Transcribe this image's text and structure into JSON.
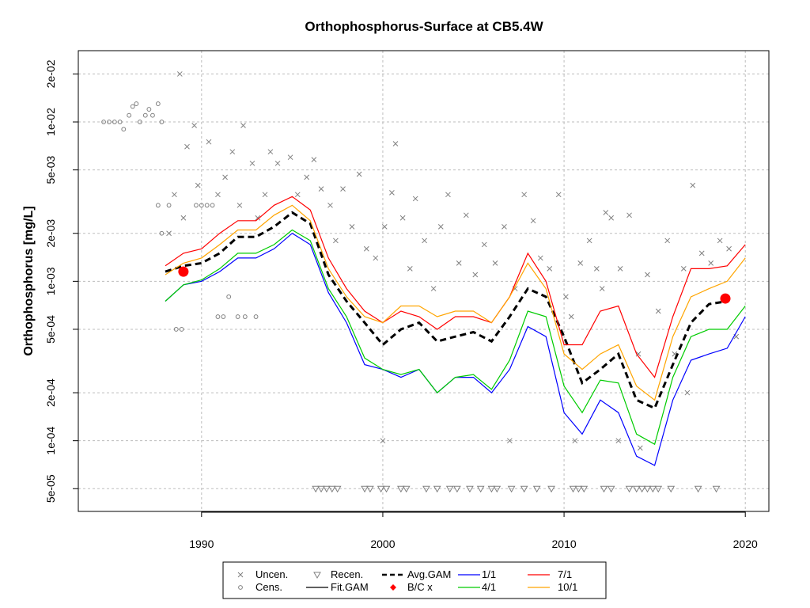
{
  "chart_data": {
    "type": "line",
    "title": "Orthophosphorus-Surface at CB5.4W",
    "ylabel": "Orthophosphorus [mg/L]",
    "xlabel": "",
    "xlim": [
      1983.2,
      2021.3
    ],
    "ylim": [
      3.6e-05,
      0.028
    ],
    "y_scale": "log",
    "grid": true,
    "legend_position": "bottom",
    "x_ticks": [
      1990,
      2000,
      2010,
      2020
    ],
    "x_tick_labels": [
      "1990",
      "2000",
      "2010",
      "2020"
    ],
    "y_ticks": [
      5e-05,
      0.0001,
      0.0002,
      0.0005,
      0.001,
      0.002,
      0.005,
      0.01,
      0.02
    ],
    "y_tick_labels": [
      "5e-05",
      "1e-04",
      "2e-04",
      "5e-04",
      "1e-03",
      "2e-03",
      "5e-03",
      "1e-02",
      "2e-02"
    ],
    "legend": [
      {
        "label": "Uncen.",
        "kind": "x-marker",
        "color": "#808080"
      },
      {
        "label": "Cens.",
        "kind": "circle-marker",
        "color": "#808080"
      },
      {
        "label": "Recen.",
        "kind": "triangle-marker",
        "color": "#808080"
      },
      {
        "label": "Fit.GAM",
        "kind": "line",
        "color": "#000000"
      },
      {
        "label": "Avg.GAM",
        "kind": "dashed-line",
        "color": "#000000"
      },
      {
        "label": "B/C x",
        "kind": "diamond-marker",
        "color": "#ff0000"
      },
      {
        "label": "1/1",
        "kind": "line",
        "color": "#0000ff"
      },
      {
        "label": "4/1",
        "kind": "line",
        "color": "#00cc00"
      },
      {
        "label": "7/1",
        "kind": "line",
        "color": "#ff0000"
      },
      {
        "label": "10/1",
        "kind": "line",
        "color": "#ffa500"
      }
    ],
    "series": [
      {
        "name": "Avg.GAM",
        "color": "#000000",
        "style": "dashed",
        "x": [
          1988,
          1989,
          1990,
          1991,
          1992,
          1993,
          1994,
          1995,
          1996,
          1997,
          1998,
          1999,
          2000,
          2001,
          2002,
          2003,
          2004,
          2005,
          2006,
          2007,
          2008,
          2009,
          2010,
          2011,
          2012,
          2013,
          2014,
          2015,
          2016,
          2017,
          2018,
          2019
        ],
        "y": [
          0.00115,
          0.00125,
          0.0013,
          0.0015,
          0.0019,
          0.0019,
          0.0022,
          0.0027,
          0.0023,
          0.0011,
          0.00075,
          0.00055,
          0.0004,
          0.0005,
          0.00055,
          0.00042,
          0.00045,
          0.00048,
          0.00042,
          0.0006,
          0.0009,
          0.0008,
          0.00045,
          0.00023,
          0.00028,
          0.00035,
          0.00018,
          0.00016,
          0.0003,
          0.00055,
          0.00072,
          0.00075
        ]
      },
      {
        "name": "1/1",
        "color": "#0000ff",
        "style": "solid",
        "x": [
          1988,
          1989,
          1990,
          1991,
          1992,
          1993,
          1994,
          1995,
          1996,
          1997,
          1998,
          1999,
          2000,
          2001,
          2002,
          2003,
          2004,
          2005,
          2006,
          2007,
          2008,
          2009,
          2010,
          2011,
          2012,
          2013,
          2014,
          2015,
          2016,
          2017,
          2018,
          2019,
          2020
        ],
        "y": [
          0.00075,
          0.00095,
          0.001,
          0.00115,
          0.0014,
          0.0014,
          0.0016,
          0.002,
          0.0017,
          0.00085,
          0.00055,
          0.0003,
          0.00028,
          0.00025,
          0.00028,
          0.0002,
          0.00025,
          0.00025,
          0.0002,
          0.00028,
          0.00052,
          0.00045,
          0.00015,
          0.00011,
          0.00018,
          0.00015,
          8e-05,
          7e-05,
          0.00018,
          0.00032,
          0.00035,
          0.00038,
          0.0006
        ]
      },
      {
        "name": "4/1",
        "color": "#00cc00",
        "style": "solid",
        "x": [
          1988,
          1989,
          1990,
          1991,
          1992,
          1993,
          1994,
          1995,
          1996,
          1997,
          1998,
          1999,
          2000,
          2001,
          2002,
          2003,
          2004,
          2005,
          2006,
          2007,
          2008,
          2009,
          2010,
          2011,
          2012,
          2013,
          2014,
          2015,
          2016,
          2017,
          2018,
          2019,
          2020
        ],
        "y": [
          0.00075,
          0.00095,
          0.00102,
          0.0012,
          0.0015,
          0.0015,
          0.0017,
          0.0021,
          0.0018,
          0.0009,
          0.0006,
          0.00033,
          0.00028,
          0.00026,
          0.00028,
          0.0002,
          0.00025,
          0.00026,
          0.00021,
          0.00032,
          0.00065,
          0.0006,
          0.00022,
          0.00015,
          0.00024,
          0.00023,
          0.00011,
          9.5e-05,
          0.00025,
          0.00045,
          0.0005,
          0.0005,
          0.0007
        ]
      },
      {
        "name": "7/1",
        "color": "#ff0000",
        "style": "solid",
        "x": [
          1988,
          1989,
          1990,
          1991,
          1992,
          1993,
          1994,
          1995,
          1996,
          1997,
          1998,
          1999,
          2000,
          2001,
          2002,
          2003,
          2004,
          2005,
          2006,
          2007,
          2008,
          2009,
          2010,
          2011,
          2012,
          2013,
          2014,
          2015,
          2016,
          2017,
          2018,
          2019,
          2020
        ],
        "y": [
          0.00125,
          0.0015,
          0.0016,
          0.002,
          0.0024,
          0.0024,
          0.003,
          0.0034,
          0.0028,
          0.0014,
          0.0009,
          0.00065,
          0.00055,
          0.00065,
          0.0006,
          0.0005,
          0.0006,
          0.0006,
          0.00055,
          0.0008,
          0.0015,
          0.001,
          0.0004,
          0.0004,
          0.00065,
          0.0007,
          0.00035,
          0.00025,
          0.0006,
          0.0012,
          0.0012,
          0.00125,
          0.0017
        ]
      },
      {
        "name": "10/1",
        "color": "#ffa500",
        "style": "solid",
        "x": [
          1988,
          1989,
          1990,
          1991,
          1992,
          1993,
          1994,
          1995,
          1996,
          1997,
          1998,
          1999,
          2000,
          2001,
          2002,
          2003,
          2004,
          2005,
          2006,
          2007,
          2008,
          2009,
          2010,
          2011,
          2012,
          2013,
          2014,
          2015,
          2016,
          2017,
          2018,
          2019,
          2020
        ],
        "y": [
          0.0011,
          0.0013,
          0.0014,
          0.0017,
          0.0021,
          0.0021,
          0.0026,
          0.003,
          0.0024,
          0.0012,
          0.0008,
          0.0006,
          0.00055,
          0.0007,
          0.0007,
          0.0006,
          0.00065,
          0.00065,
          0.00055,
          0.0008,
          0.0013,
          0.0009,
          0.00035,
          0.00028,
          0.00035,
          0.0004,
          0.00022,
          0.00018,
          0.00045,
          0.0008,
          0.0009,
          0.001,
          0.0014
        ]
      }
    ],
    "bc_points": [
      {
        "x": 1989.0,
        "y": 0.00115
      },
      {
        "x": 2018.9,
        "y": 0.00078
      }
    ],
    "uncensored_points": [
      [
        1988.2,
        0.002
      ],
      [
        1988.5,
        0.0035
      ],
      [
        1988.8,
        0.02
      ],
      [
        1989.0,
        0.0025
      ],
      [
        1989.2,
        0.007
      ],
      [
        1989.6,
        0.0095
      ],
      [
        1989.8,
        0.004
      ],
      [
        1990.4,
        0.0075
      ],
      [
        1990.9,
        0.0035
      ],
      [
        1991.3,
        0.0045
      ],
      [
        1991.7,
        0.0065
      ],
      [
        1992.1,
        0.003
      ],
      [
        1992.3,
        0.0095
      ],
      [
        1992.8,
        0.0055
      ],
      [
        1993.1,
        0.0025
      ],
      [
        1993.5,
        0.0035
      ],
      [
        1993.8,
        0.0065
      ],
      [
        1994.2,
        0.0055
      ],
      [
        1994.9,
        0.006
      ],
      [
        1995.3,
        0.0035
      ],
      [
        1995.8,
        0.0045
      ],
      [
        1996.2,
        0.0058
      ],
      [
        1996.6,
        0.0038
      ],
      [
        1997.1,
        0.003
      ],
      [
        1997.4,
        0.0018
      ],
      [
        1997.8,
        0.0038
      ],
      [
        1998.3,
        0.0022
      ],
      [
        1998.7,
        0.0047
      ],
      [
        1999.1,
        0.0016
      ],
      [
        1999.6,
        0.0014
      ],
      [
        2000.1,
        0.0022
      ],
      [
        2000.5,
        0.0036
      ],
      [
        2000.7,
        0.0073
      ],
      [
        2001.1,
        0.0025
      ],
      [
        2001.5,
        0.0012
      ],
      [
        2001.8,
        0.0033
      ],
      [
        2002.3,
        0.0018
      ],
      [
        2002.8,
        0.0009
      ],
      [
        2003.2,
        0.0022
      ],
      [
        2003.6,
        0.0035
      ],
      [
        2004.2,
        0.0013
      ],
      [
        2004.6,
        0.0026
      ],
      [
        2005.1,
        0.0011
      ],
      [
        2005.6,
        0.0017
      ],
      [
        2006.2,
        0.0013
      ],
      [
        2006.7,
        0.0022
      ],
      [
        2007.3,
        0.0009
      ],
      [
        2007.8,
        0.0035
      ],
      [
        2008.3,
        0.0024
      ],
      [
        2008.7,
        0.0014
      ],
      [
        2009.2,
        0.0012
      ],
      [
        2009.7,
        0.0035
      ],
      [
        2010.1,
        0.0008
      ],
      [
        2010.4,
        0.0006
      ],
      [
        2010.9,
        0.0013
      ],
      [
        2011.4,
        0.0018
      ],
      [
        2011.8,
        0.0012
      ],
      [
        2012.1,
        0.0009
      ],
      [
        2012.6,
        0.0025
      ],
      [
        2013.1,
        0.0012
      ],
      [
        2013.6,
        0.0026
      ],
      [
        2014.1,
        0.00035
      ],
      [
        2014.6,
        0.0011
      ],
      [
        2015.2,
        0.00065
      ],
      [
        2015.7,
        0.0018
      ],
      [
        2016.1,
        0.00035
      ],
      [
        2016.6,
        0.0012
      ],
      [
        2017.1,
        0.004
      ],
      [
        2017.6,
        0.0015
      ],
      [
        2018.1,
        0.0013
      ],
      [
        2018.6,
        0.0018
      ],
      [
        2019.1,
        0.0016
      ],
      [
        2019.5,
        0.00045
      ],
      [
        2000.0,
        0.0001
      ],
      [
        2007.0,
        0.0001
      ],
      [
        2010.6,
        0.0001
      ],
      [
        2013.0,
        0.0001
      ],
      [
        2014.2,
        9e-05
      ],
      [
        2016.8,
        0.0002
      ],
      [
        2012.3,
        0.0027
      ]
    ],
    "censored_points": [
      [
        1984.6,
        0.01
      ],
      [
        1984.9,
        0.01
      ],
      [
        1985.2,
        0.01
      ],
      [
        1985.5,
        0.01
      ],
      [
        1985.7,
        0.009
      ],
      [
        1986.0,
        0.011
      ],
      [
        1986.2,
        0.0125
      ],
      [
        1986.4,
        0.013
      ],
      [
        1986.6,
        0.01
      ],
      [
        1986.9,
        0.011
      ],
      [
        1987.1,
        0.012
      ],
      [
        1987.3,
        0.011
      ],
      [
        1987.6,
        0.013
      ],
      [
        1987.8,
        0.01
      ],
      [
        1987.6,
        0.003
      ],
      [
        1987.8,
        0.002
      ],
      [
        1988.2,
        0.003
      ],
      [
        1988.6,
        0.0005
      ],
      [
        1988.9,
        0.0005
      ],
      [
        1989.7,
        0.003
      ],
      [
        1990.0,
        0.003
      ],
      [
        1990.3,
        0.003
      ],
      [
        1990.6,
        0.003
      ],
      [
        1990.9,
        0.0006
      ],
      [
        1991.2,
        0.0006
      ],
      [
        1991.5,
        0.0008
      ],
      [
        1992.0,
        0.0006
      ],
      [
        1992.4,
        0.0006
      ],
      [
        1993.0,
        0.0006
      ]
    ],
    "recensored_points": [
      [
        1996.3,
        5e-05
      ],
      [
        1996.6,
        5e-05
      ],
      [
        1996.9,
        5e-05
      ],
      [
        1997.2,
        5e-05
      ],
      [
        1997.5,
        5e-05
      ],
      [
        1999.0,
        5e-05
      ],
      [
        1999.3,
        5e-05
      ],
      [
        1999.9,
        5e-05
      ],
      [
        2000.2,
        5e-05
      ],
      [
        2001.0,
        5e-05
      ],
      [
        2001.3,
        5e-05
      ],
      [
        2002.4,
        5e-05
      ],
      [
        2003.0,
        5e-05
      ],
      [
        2003.7,
        5e-05
      ],
      [
        2004.1,
        5e-05
      ],
      [
        2004.8,
        5e-05
      ],
      [
        2005.4,
        5e-05
      ],
      [
        2006.0,
        5e-05
      ],
      [
        2006.3,
        5e-05
      ],
      [
        2007.1,
        5e-05
      ],
      [
        2007.8,
        5e-05
      ],
      [
        2008.5,
        5e-05
      ],
      [
        2009.3,
        5e-05
      ],
      [
        2010.5,
        5e-05
      ],
      [
        2010.8,
        5e-05
      ],
      [
        2011.1,
        5e-05
      ],
      [
        2012.2,
        5e-05
      ],
      [
        2012.6,
        5e-05
      ],
      [
        2013.6,
        5e-05
      ],
      [
        2014.0,
        5e-05
      ],
      [
        2014.3,
        5e-05
      ],
      [
        2014.6,
        5e-05
      ],
      [
        2014.9,
        5e-05
      ],
      [
        2015.2,
        5e-05
      ],
      [
        2015.9,
        5e-05
      ],
      [
        2017.4,
        5e-05
      ],
      [
        2018.4,
        5e-05
      ]
    ]
  }
}
